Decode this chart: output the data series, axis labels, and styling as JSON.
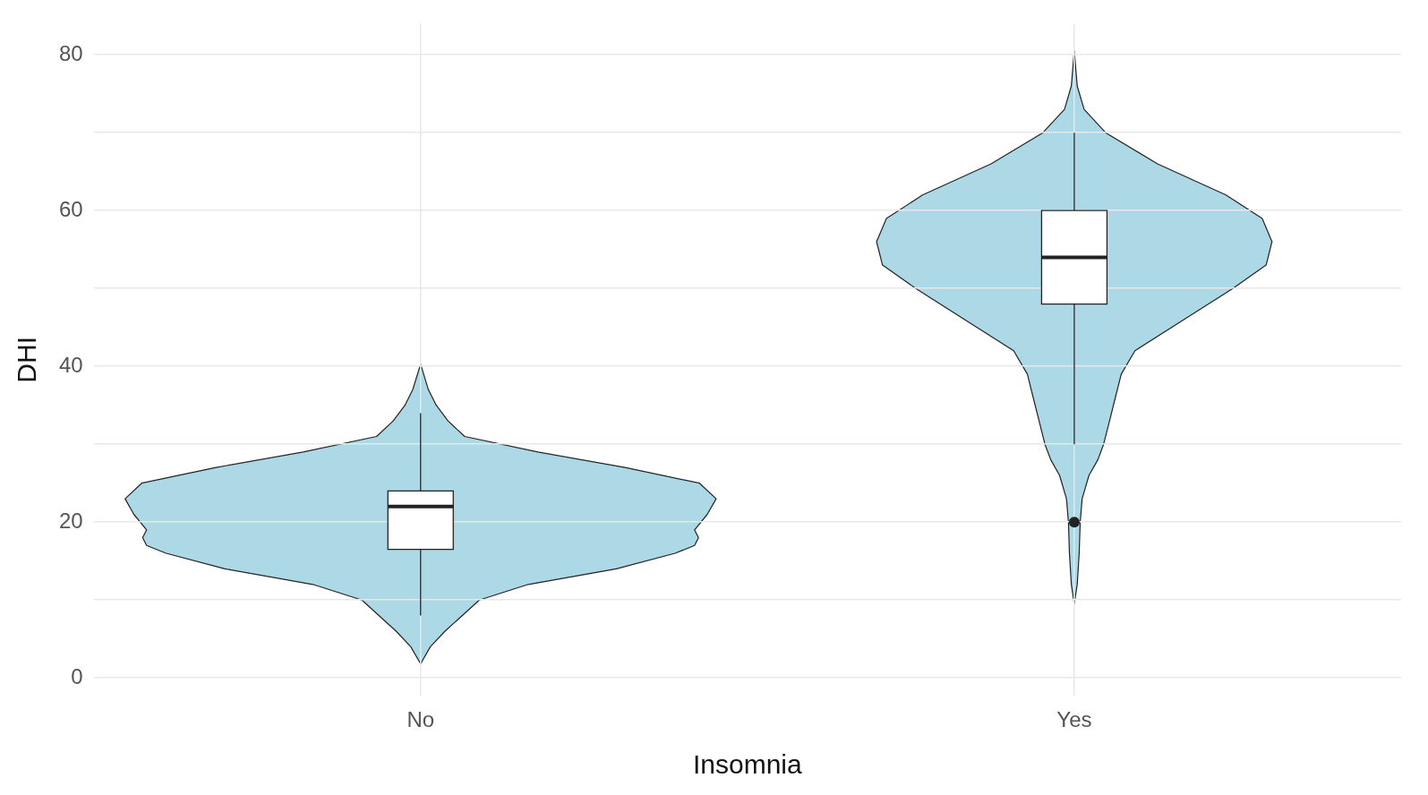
{
  "chart_data": {
    "type": "box",
    "xlabel": "Insomnia",
    "ylabel": "DHI",
    "categories": [
      "No",
      "Yes"
    ],
    "boxes": [
      {
        "low": 8,
        "q1": 16.5,
        "median": 22,
        "q3": 24,
        "high": 34
      },
      {
        "low": 30,
        "q1": 48,
        "median": 54,
        "q3": 60,
        "high": 70,
        "outliers": [
          20
        ]
      }
    ],
    "color": "#ffffff",
    "ylim": [
      -2.3,
      84
    ],
    "yticks": [
      0,
      {
        "value": 10,
        "label": null
      },
      20,
      {
        "value": 30,
        "label": null
      },
      40,
      {
        "value": 50,
        "label": null
      },
      60,
      {
        "value": 70,
        "label": null
      },
      80
    ],
    "grid": true
  }
}
